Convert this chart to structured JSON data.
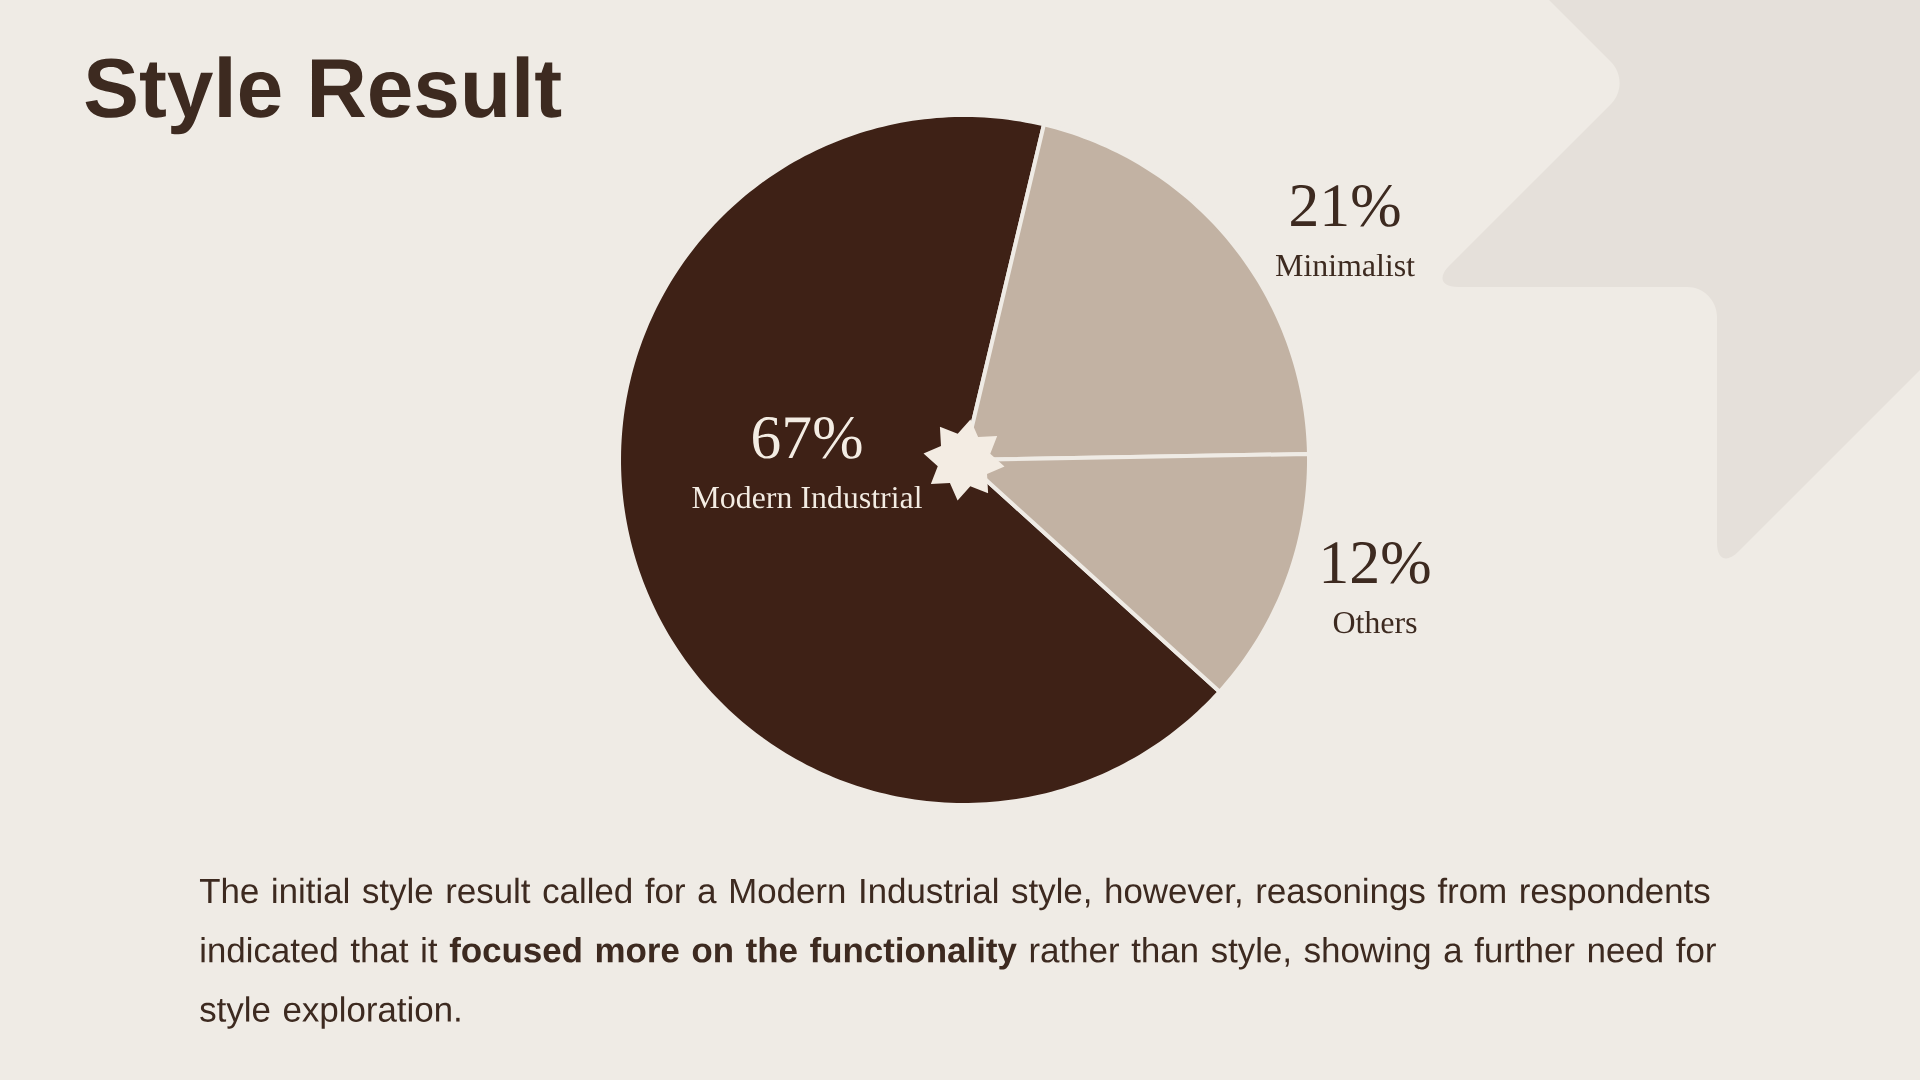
{
  "chart_data": {
    "type": "pie",
    "title": "Style Result",
    "categories": [
      "Modern Industrial",
      "Minimalist",
      "Others"
    ],
    "values": [
      67,
      21,
      12
    ],
    "value_labels": [
      "67%",
      "21%",
      "12%"
    ],
    "colors": [
      "#3e2116",
      "#c2b2a3",
      "#c2b2a3"
    ],
    "annotations": [
      "The initial style result called for a Modern Industrial style, however, reasonings from respondents indicated that it **focused more on the functionality** rather than style, showing a further need for style exploration."
    ]
  }
}
